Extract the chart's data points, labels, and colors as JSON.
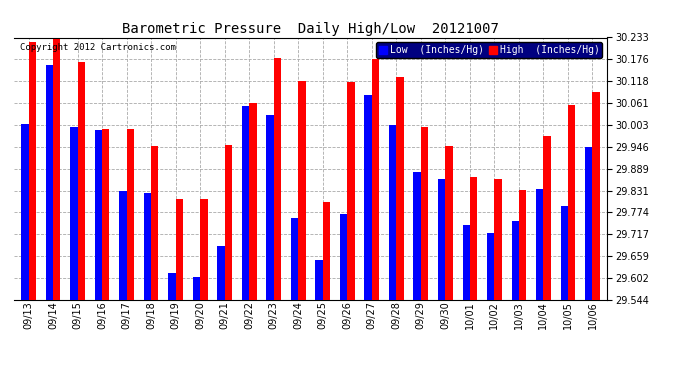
{
  "title": "Barometric Pressure  Daily High/Low  20121007",
  "copyright": "Copyright 2012 Cartronics.com",
  "legend_low": "Low  (Inches/Hg)",
  "legend_high": "High  (Inches/Hg)",
  "categories": [
    "09/13",
    "09/14",
    "09/15",
    "09/16",
    "09/17",
    "09/18",
    "09/19",
    "09/20",
    "09/21",
    "09/22",
    "09/23",
    "09/24",
    "09/25",
    "09/26",
    "09/27",
    "09/28",
    "09/29",
    "09/30",
    "10/01",
    "10/02",
    "10/03",
    "10/04",
    "10/05",
    "10/06"
  ],
  "low_values": [
    30.006,
    30.16,
    29.997,
    29.99,
    29.83,
    29.826,
    29.614,
    29.605,
    29.686,
    30.053,
    30.03,
    29.76,
    29.648,
    29.77,
    30.083,
    30.003,
    29.88,
    29.862,
    29.742,
    29.72,
    29.752,
    29.836,
    29.79,
    29.946
  ],
  "high_values": [
    30.22,
    30.228,
    30.168,
    29.994,
    29.992,
    29.948,
    29.81,
    29.808,
    29.952,
    30.062,
    30.18,
    30.12,
    29.8,
    30.117,
    30.177,
    30.13,
    29.998,
    29.948,
    29.868,
    29.862,
    29.834,
    29.975,
    30.055,
    30.09
  ],
  "ylim_min": 29.544,
  "ylim_max": 30.233,
  "yticks": [
    29.544,
    29.602,
    29.659,
    29.717,
    29.774,
    29.831,
    29.889,
    29.946,
    30.003,
    30.061,
    30.118,
    30.176,
    30.233
  ],
  "low_color": "#0000ff",
  "high_color": "#ff0000",
  "bg_color": "#ffffff",
  "grid_color": "#aaaaaa",
  "title_fontsize": 10,
  "copyright_fontsize": 6.5,
  "tick_fontsize": 7
}
